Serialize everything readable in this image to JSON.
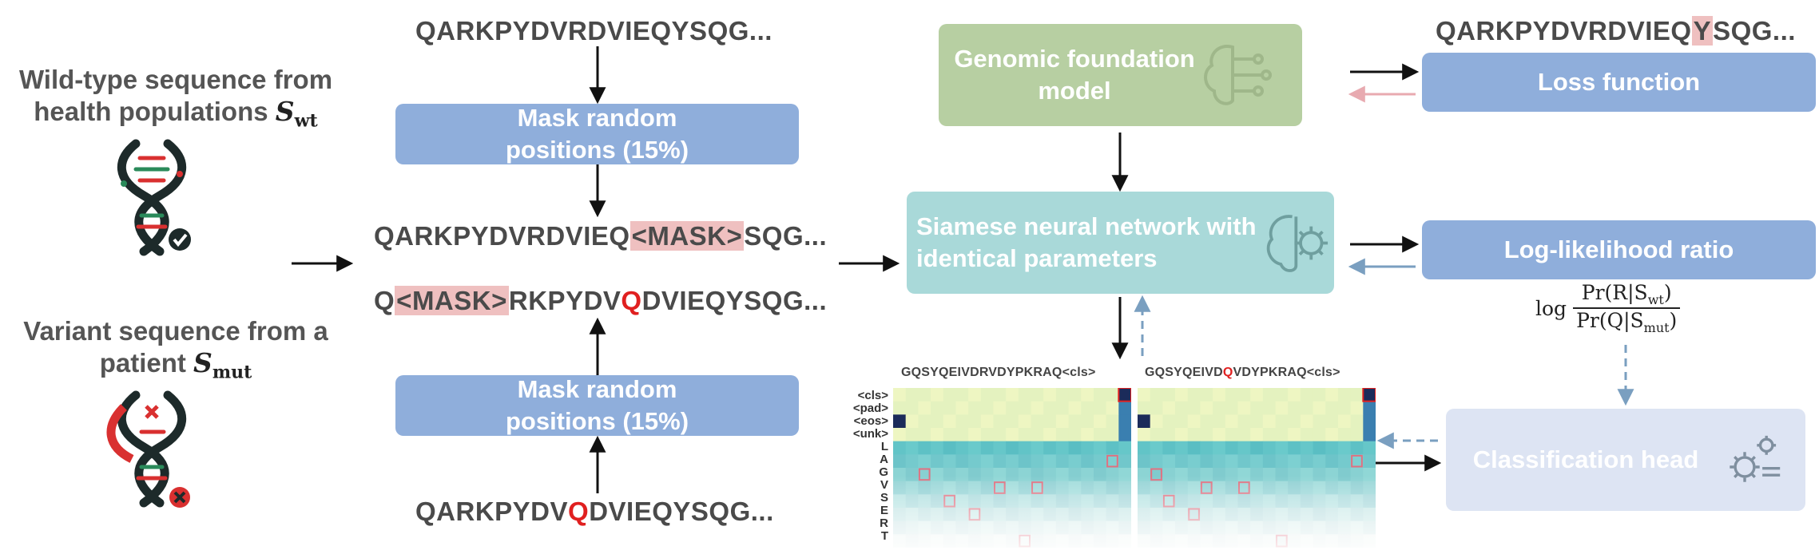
{
  "left": {
    "wildtype_label_line1": "Wild-type sequence from",
    "wildtype_label_line2": "health populations",
    "wildtype_symbol": "S",
    "wildtype_sub": "wt",
    "variant_label_line1": "Variant sequence from a",
    "variant_label_line2": "patient",
    "variant_symbol": "S",
    "variant_sub": "mut"
  },
  "middle": {
    "seq_top": "QARKPYDVRDVIEQYSQG...",
    "mask_box_top": "Mask random positions (15%)",
    "seq_masked_1_pre": "QARKPYDVRDVIEQ",
    "seq_masked_1_mask": "<MASK>",
    "seq_masked_1_post": "SQG...",
    "seq_masked_2_pre": "Q",
    "seq_masked_2_mask": "<MASK>",
    "seq_masked_2_mid": "RKPYDV",
    "seq_masked_2_mut": "Q",
    "seq_masked_2_post": "DVIEQYSQG...",
    "mask_box_bottom": "Mask random positions (15%)",
    "seq_bottom_pre": "QARKPYDV",
    "seq_bottom_mut": "Q",
    "seq_bottom_post": "DVIEQYSQG..."
  },
  "center": {
    "foundation_model": "Genomic foundation model",
    "siamese_network": "Siamese neural network with identical parameters",
    "heatmap_left_title": "GQSYQEIVDRVDYPKRAQ<cls>",
    "heatmap_right_title_pre": "GQSYQEIVD",
    "heatmap_right_title_mut": "Q",
    "heatmap_right_title_post": "VDYPKRAQ<cls>",
    "heatmap_rows": [
      "<cls>",
      "<pad>",
      "<eos>",
      "<unk>",
      "L",
      "A",
      "G",
      "V",
      "S",
      "E",
      "R",
      "T"
    ]
  },
  "right": {
    "seq_top_pre": "QARKPYDVRDVIEQ",
    "seq_top_highlight": "Y",
    "seq_top_post": "SQG...",
    "loss_function": "Loss function",
    "log_likelihood_ratio": "Log-likelihood ratio",
    "formula_log": "log",
    "formula_numerator": "Pr(R|S",
    "formula_numerator_sub": "wt",
    "formula_denominator": "Pr(Q|S",
    "formula_denominator_sub": "mut",
    "classification_head": "Classification head"
  },
  "colors": {
    "blue_box": "#8faedb",
    "teal_box": "#a9d9d9",
    "green_box": "#b7cfa2",
    "lavender_box": "#dde4f3",
    "mask_highlight": "#efc0c0",
    "mutation_red": "#e02020",
    "arrow_pink": "#e8aab0",
    "arrow_dashed_blue": "#7a9fc0"
  }
}
